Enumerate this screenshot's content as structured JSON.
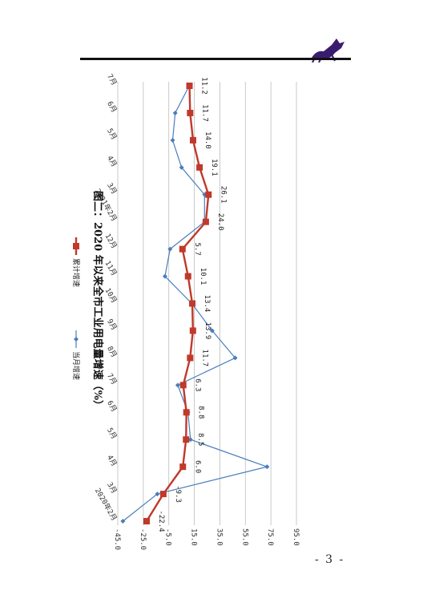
{
  "page": {
    "number": "- 3 -"
  },
  "chart_data": {
    "type": "line",
    "title": "图二：2020 年以来全市工业用电量增速（%）",
    "categories": [
      "2020年2月",
      "3月",
      "4月",
      "5月",
      "6月",
      "7月",
      "8月",
      "9月",
      "10月",
      "11月",
      "12月",
      "2021年2月",
      "3月",
      "4月",
      "5月",
      "6月",
      "7月"
    ],
    "ylim": [
      -45,
      95
    ],
    "y_ticks": [
      "-45.0",
      "-25.0",
      "-5.0",
      "15.0",
      "35.0",
      "55.0",
      "75.0",
      "95.0"
    ],
    "grid": true,
    "legend_position": "right",
    "series": [
      {
        "name": "当月增速",
        "color": "#4a7ebb",
        "values": [
          -41,
          -14,
          72,
          12,
          10,
          2,
          47,
          29,
          13,
          -8,
          -4,
          23,
          23,
          5,
          -2,
          0,
          11
        ]
      },
      {
        "name": "累计增速",
        "color": "#c0392b",
        "values": [
          -22.4,
          -9.3,
          6.0,
          8.5,
          8.8,
          6.3,
          11.7,
          13.9,
          13.4,
          10.1,
          5.7,
          24.0,
          26.1,
          19.1,
          14.0,
          11.7,
          11.2
        ]
      }
    ],
    "data_labels": [
      "-22.4",
      "-9.3",
      "6.0",
      "8.5",
      "8.8",
      "6.3",
      "11.7",
      "13.9",
      "13.4",
      "10.1",
      "5.7",
      "24.0",
      "26.1",
      "19.1",
      "14.0",
      "11.7",
      "11.2"
    ]
  }
}
